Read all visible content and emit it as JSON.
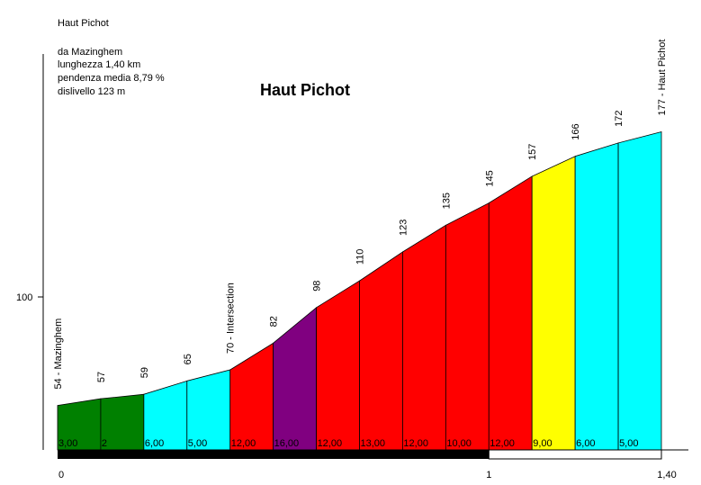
{
  "chart_data": {
    "type": "area",
    "title": "Haut Pichot",
    "info": {
      "name": "Haut Pichot",
      "start": "da Mazinghem",
      "length": "lunghezza 1,40 km",
      "avg_grade": "pendenza media 8,79 %",
      "climb": "dislivello 123 m"
    },
    "y_tick": {
      "value": 100,
      "label": "100"
    },
    "ylim": [
      34,
      212
    ],
    "xlim": [
      0,
      1.4
    ],
    "x_ticks": [
      {
        "value": 0,
        "label": "0"
      },
      {
        "value": 1,
        "label": "1"
      },
      {
        "value": 1.4,
        "label": "1,40"
      }
    ],
    "points": [
      {
        "x": 0.0,
        "elev": 54,
        "label": "54 - Mazinghem"
      },
      {
        "x": 0.1,
        "elev": 57,
        "label": "57"
      },
      {
        "x": 0.2,
        "elev": 59,
        "label": "59"
      },
      {
        "x": 0.3,
        "elev": 65,
        "label": "65"
      },
      {
        "x": 0.4,
        "elev": 70,
        "label": "70 - Intersection"
      },
      {
        "x": 0.5,
        "elev": 82,
        "label": "82"
      },
      {
        "x": 0.6,
        "elev": 98,
        "label": "98"
      },
      {
        "x": 0.7,
        "elev": 110,
        "label": "110"
      },
      {
        "x": 0.8,
        "elev": 123,
        "label": "123"
      },
      {
        "x": 0.9,
        "elev": 135,
        "label": "135"
      },
      {
        "x": 1.0,
        "elev": 145,
        "label": "145"
      },
      {
        "x": 1.1,
        "elev": 157,
        "label": "157"
      },
      {
        "x": 1.2,
        "elev": 166,
        "label": "166"
      },
      {
        "x": 1.3,
        "elev": 172,
        "label": "172"
      },
      {
        "x": 1.4,
        "elev": 177,
        "label": "177 - Haut Pichot"
      }
    ],
    "segments": [
      {
        "grade": "3,00",
        "color": "#008000"
      },
      {
        "grade": "2",
        "color": "#008000"
      },
      {
        "grade": "6,00",
        "color": "#00ffff"
      },
      {
        "grade": "5,00",
        "color": "#00ffff"
      },
      {
        "grade": "12,00",
        "color": "#ff0000"
      },
      {
        "grade": "16,00",
        "color": "#800080"
      },
      {
        "grade": "12,00",
        "color": "#ff0000"
      },
      {
        "grade": "13,00",
        "color": "#ff0000"
      },
      {
        "grade": "12,00",
        "color": "#ff0000"
      },
      {
        "grade": "10,00",
        "color": "#ff0000"
      },
      {
        "grade": "12,00",
        "color": "#ff0000"
      },
      {
        "grade": "9,00",
        "color": "#ffff00"
      },
      {
        "grade": "6,00",
        "color": "#00ffff"
      },
      {
        "grade": "5,00",
        "color": "#00ffff"
      }
    ]
  }
}
